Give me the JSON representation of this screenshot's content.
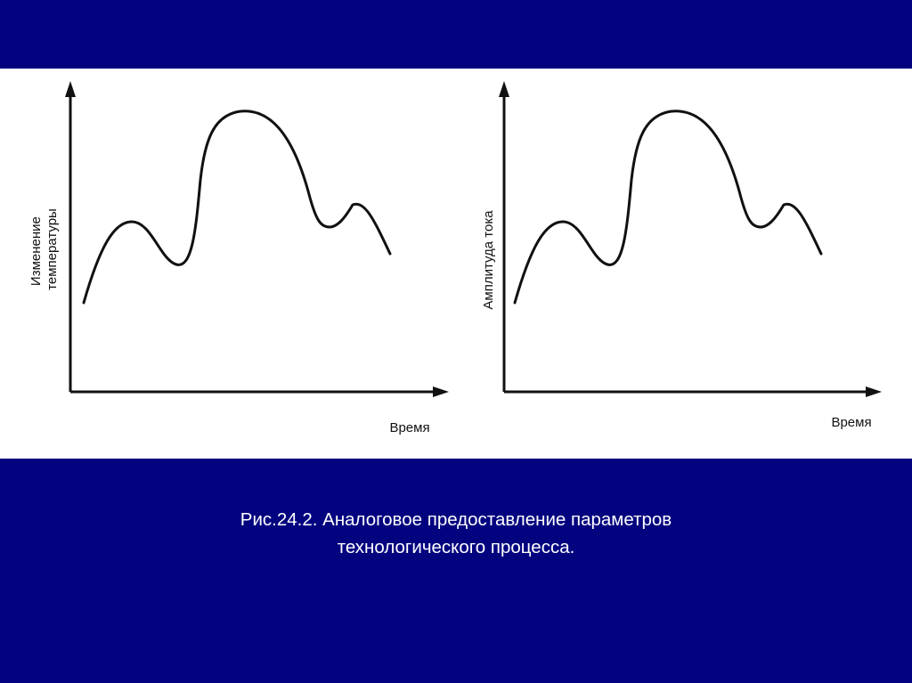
{
  "colors": {
    "background": "#030380",
    "panel": "#ffffff",
    "ink": "#111111",
    "caption_text": "#ffffff"
  },
  "figures": [
    {
      "ylabel_lines": [
        "Изменение",
        "температуры"
      ],
      "xlabel": "Время"
    },
    {
      "ylabel_lines": [
        "Амплитуда тока"
      ],
      "xlabel": "Время"
    }
  ],
  "caption": {
    "line1": "Рис.24.2. Аналоговое предоставление параметров",
    "line2": "технологического процесса."
  }
}
